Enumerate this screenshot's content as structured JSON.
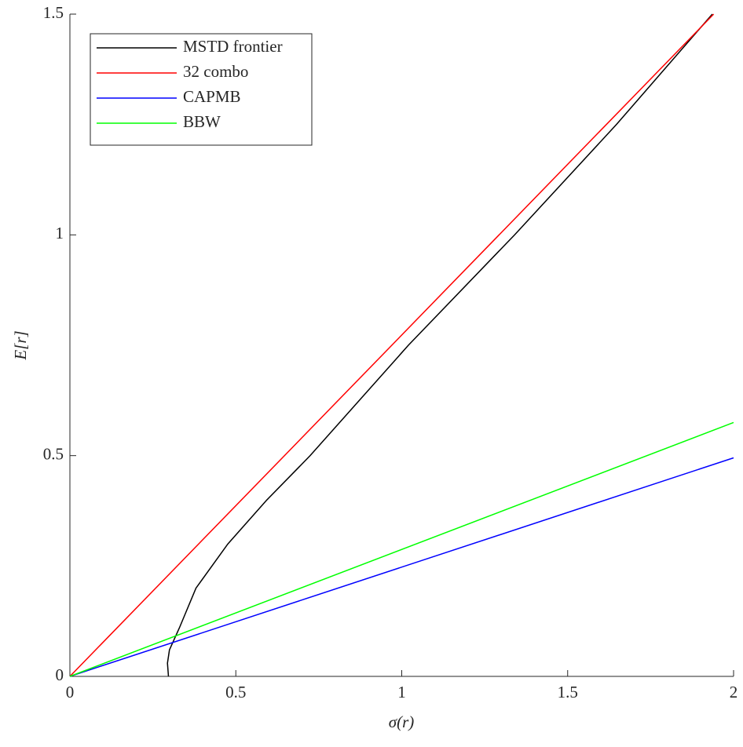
{
  "chart_data": {
    "type": "line",
    "x_label": "σ(r)",
    "y_label": "E[r]",
    "xlim": [
      0,
      2
    ],
    "ylim": [
      0,
      1.5
    ],
    "xticks": [
      0,
      0.5,
      1,
      1.5,
      2
    ],
    "yticks": [
      0,
      0.5,
      1,
      1.5
    ],
    "legend": "upper left",
    "series": [
      {
        "name": "MSTD frontier",
        "color": "#000000",
        "x": [
          0.297,
          0.294,
          0.3,
          0.33,
          0.38,
          0.476,
          0.594,
          0.724,
          1.02,
          1.34,
          1.647,
          1.936
        ],
        "values": [
          0,
          0.03,
          0.06,
          0.11,
          0.2,
          0.3,
          0.4,
          0.5,
          0.75,
          1.0,
          1.25,
          1.5
        ]
      },
      {
        "name": "32 combo",
        "color": "#ff0000",
        "x": [
          0,
          1.94
        ],
        "values": [
          0,
          1.5
        ]
      },
      {
        "name": "CAPMB",
        "color": "#0000ff",
        "x": [
          0,
          2
        ],
        "values": [
          0,
          0.495
        ]
      },
      {
        "name": "BBW",
        "color": "#00ff00",
        "x": [
          0,
          2
        ],
        "values": [
          0,
          0.575
        ]
      }
    ]
  }
}
